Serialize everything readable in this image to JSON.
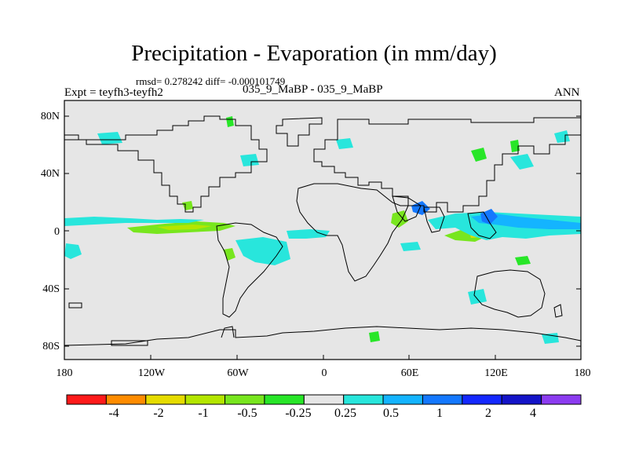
{
  "title": "Precipitation - Evaporation (in mm/day)",
  "stats_line": "rmsd= 0.278242 diff= -0.000101749",
  "experiment": "Expt = teyfh3-teyfh2",
  "cases": "035_9_MaBP - 035_9_MaBP",
  "season": "ANN",
  "map": {
    "background_color": "#e6e6e6",
    "y_ticks": [
      "80N",
      "40N",
      "0",
      "40S",
      "80S"
    ],
    "x_ticks": [
      "180",
      "120W",
      "60W",
      "0",
      "60E",
      "120E",
      "180"
    ]
  },
  "colorbar": {
    "colors": [
      "#ff1a1a",
      "#ff8c00",
      "#e6dc00",
      "#b4e600",
      "#78e61e",
      "#28e628",
      "#e6e6e6",
      "#28e6dc",
      "#14b4ff",
      "#1478ff",
      "#1428ff",
      "#1414c8",
      "#8c3cf0"
    ],
    "labels": [
      "-4",
      "-2",
      "-1",
      "-0.5",
      "-0.25",
      "0.25",
      "0.5",
      "1",
      "2",
      "4"
    ]
  }
}
